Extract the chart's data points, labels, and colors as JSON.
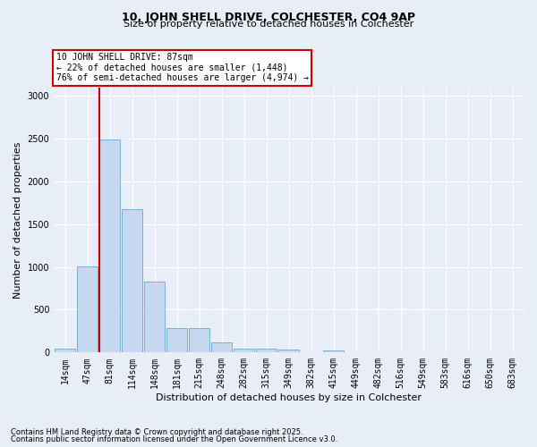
{
  "title_line1": "10, JOHN SHELL DRIVE, COLCHESTER, CO4 9AP",
  "title_line2": "Size of property relative to detached houses in Colchester",
  "xlabel": "Distribution of detached houses by size in Colchester",
  "ylabel": "Number of detached properties",
  "footnote1": "Contains HM Land Registry data © Crown copyright and database right 2025.",
  "footnote2": "Contains public sector information licensed under the Open Government Licence v3.0.",
  "categories": [
    "14sqm",
    "47sqm",
    "81sqm",
    "114sqm",
    "148sqm",
    "181sqm",
    "215sqm",
    "248sqm",
    "282sqm",
    "315sqm",
    "349sqm",
    "382sqm",
    "415sqm",
    "449sqm",
    "482sqm",
    "516sqm",
    "549sqm",
    "583sqm",
    "616sqm",
    "650sqm",
    "683sqm"
  ],
  "values": [
    50,
    1005,
    2490,
    1670,
    830,
    290,
    285,
    115,
    50,
    50,
    35,
    0,
    25,
    0,
    0,
    0,
    0,
    0,
    0,
    0,
    0
  ],
  "bar_color": "#c5d8f0",
  "bar_edge_color": "#7bafd4",
  "background_color": "#e8eef8",
  "grid_color": "#ffffff",
  "vline_color": "#cc0000",
  "vline_index": 2,
  "annotation_text": "10 JOHN SHELL DRIVE: 87sqm\n← 22% of detached houses are smaller (1,448)\n76% of semi-detached houses are larger (4,974) →",
  "annotation_box_edgecolor": "#cc0000",
  "ylim": [
    0,
    3100
  ],
  "yticks": [
    0,
    500,
    1000,
    1500,
    2000,
    2500,
    3000
  ],
  "title1_fontsize": 9,
  "title2_fontsize": 8,
  "ylabel_fontsize": 8,
  "xlabel_fontsize": 8,
  "tick_fontsize": 7,
  "footnote_fontsize": 6
}
